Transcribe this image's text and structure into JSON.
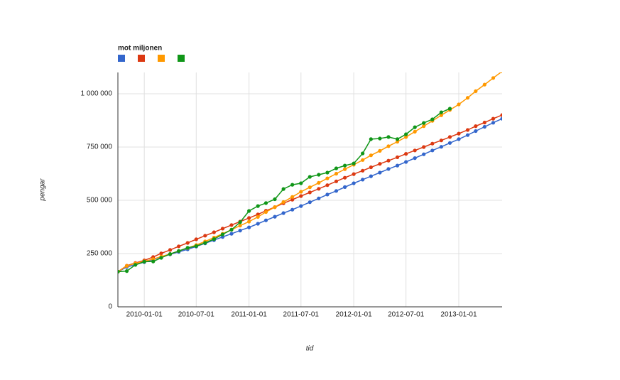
{
  "chart_data": {
    "type": "line",
    "title": "mot miljonen",
    "x_label": "tid",
    "y_label": "pengar",
    "x": [
      "2009-10-01",
      "2009-11-01",
      "2009-12-01",
      "2010-01-01",
      "2010-02-01",
      "2010-03-01",
      "2010-04-01",
      "2010-05-01",
      "2010-06-01",
      "2010-07-01",
      "2010-08-01",
      "2010-09-01",
      "2010-10-01",
      "2010-11-01",
      "2010-12-01",
      "2011-01-01",
      "2011-02-01",
      "2011-03-01",
      "2011-04-01",
      "2011-05-01",
      "2011-06-01",
      "2011-07-01",
      "2011-08-01",
      "2011-09-01",
      "2011-10-01",
      "2011-11-01",
      "2011-12-01",
      "2012-01-01",
      "2012-02-01",
      "2012-03-01",
      "2012-04-01",
      "2012-05-01",
      "2012-06-01",
      "2012-07-01",
      "2012-08-01",
      "2012-09-01",
      "2012-10-01",
      "2012-11-01",
      "2012-12-01",
      "2013-01-01",
      "2013-02-01",
      "2013-03-01",
      "2013-04-01",
      "2013-05-01",
      "2013-06-01"
    ],
    "xlim": [
      "2009-10-01",
      "2013-06-01"
    ],
    "xticks": [
      "2010-01-01",
      "2010-07-01",
      "2011-01-01",
      "2011-07-01",
      "2012-01-01",
      "2012-07-01",
      "2013-01-01"
    ],
    "ylim": [
      0,
      1100000
    ],
    "yticks": [
      0,
      {
        "value": 250000,
        "label": "250 000"
      },
      {
        "value": 500000,
        "label": "500 000"
      },
      {
        "value": 750000,
        "label": "750 000"
      },
      {
        "value": 1000000,
        "label": "1 000 000"
      }
    ],
    "grid": true,
    "legend": "top-left",
    "series": [
      {
        "color": "#3366cc",
        "values": [
          165000,
          187000,
          198000,
          210000,
          222000,
          234000,
          246000,
          258000,
          270000,
          283000,
          298000,
          313000,
          328000,
          343000,
          358000,
          373000,
          390000,
          406000,
          423000,
          440000,
          456000,
          473000,
          491000,
          509000,
          527000,
          544000,
          562000,
          580000,
          597000,
          613000,
          630000,
          647000,
          663000,
          680000,
          698000,
          716000,
          734000,
          751000,
          769000,
          787000,
          806000,
          825000,
          845000,
          864000,
          883000
        ]
      },
      {
        "color": "#dc3912",
        "values": [
          165000,
          193000,
          206000,
          218000,
          234000,
          251000,
          267000,
          284000,
          300000,
          317000,
          334000,
          350000,
          367000,
          384000,
          400000,
          417000,
          434000,
          451000,
          468000,
          486000,
          503000,
          520000,
          537000,
          554000,
          571000,
          589000,
          606000,
          623000,
          639000,
          655000,
          671000,
          686000,
          702000,
          718000,
          734000,
          750000,
          766000,
          781000,
          797000,
          813000,
          830000,
          848000,
          865000,
          883000,
          900000
        ]
      },
      {
        "color": "#ff9900",
        "values": [
          165000,
          192000,
          204000,
          214000,
          224000,
          236000,
          248000,
          262000,
          276000,
          290000,
          307000,
          325000,
          343000,
          362000,
          381000,
          400000,
          422000,
          445000,
          468000,
          492000,
          516000,
          540000,
          561000,
          582000,
          603000,
          625000,
          646000,
          667000,
          689000,
          711000,
          732000,
          754000,
          775000,
          797000,
          822000,
          848000,
          873000,
          899000,
          924000,
          950000,
          981000,
          1012000,
          1043000,
          1074000,
          1105000
        ]
      },
      {
        "color": "#109618",
        "values": [
          165000,
          168000,
          197000,
          212000,
          213000,
          230000,
          248000,
          262000,
          277000,
          285000,
          300000,
          318000,
          340000,
          362000,
          397000,
          450000,
          473000,
          487000,
          505000,
          553000,
          573000,
          580000,
          610000,
          620000,
          630000,
          650000,
          663000,
          673000,
          720000,
          787000,
          790000,
          797000,
          787000,
          810000,
          843000,
          863000,
          880000,
          913000,
          930000,
          null,
          null,
          null,
          null,
          null,
          null
        ]
      }
    ]
  }
}
